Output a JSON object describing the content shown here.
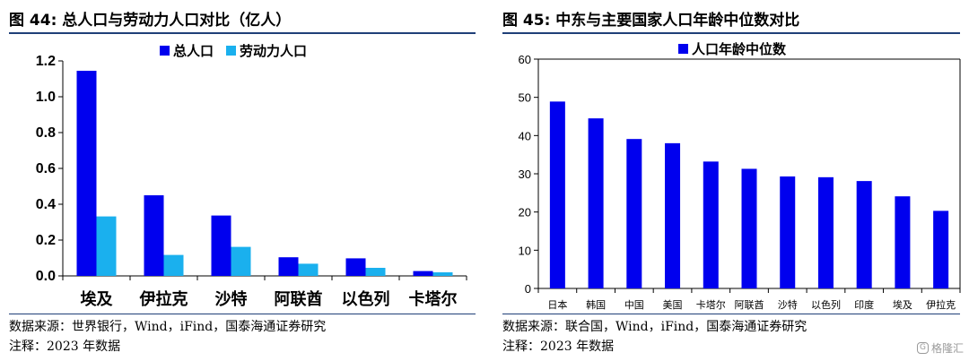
{
  "left": {
    "title": "图 44:  总人口与劳动力人口对比（亿人）",
    "source": "数据来源：世界银行，Wind，iFind，国泰海通证券研究",
    "note": "注释：2023 年数据",
    "colors": {
      "total": "#0000ee",
      "labor": "#1ab0ee"
    }
  },
  "right": {
    "title": "图 45:  中东与主要国家人口年龄中位数对比",
    "source": "数据来源：联合国，Wind，iFind，国泰海通证券研究",
    "note": "注释：2023 年数据",
    "colors": {
      "bar": "#0000ee"
    }
  },
  "watermark": {
    "text": "格隆汇",
    "icon": "logo-icon"
  },
  "chart_data": [
    {
      "type": "bar",
      "categories": [
        "埃及",
        "伊拉克",
        "沙特",
        "阿联酋",
        "以色列",
        "卡塔尔"
      ],
      "series": [
        {
          "name": "总人口",
          "values": [
            1.145,
            0.45,
            0.337,
            0.104,
            0.098,
            0.027
          ]
        },
        {
          "name": "劳动力人口",
          "values": [
            0.332,
            0.117,
            0.162,
            0.068,
            0.045,
            0.02
          ]
        }
      ],
      "ylim": [
        0,
        1.2
      ],
      "yticks": [
        "0.0",
        "0.2",
        "0.4",
        "0.6",
        "0.8",
        "1.0",
        "1.2"
      ],
      "legend": "top"
    },
    {
      "type": "bar",
      "categories": [
        "日本",
        "韩国",
        "中国",
        "美国",
        "卡塔尔",
        "阿联酋",
        "沙特",
        "以色列",
        "印度",
        "埃及",
        "伊拉克"
      ],
      "series": [
        {
          "name": "人口年龄中位数",
          "values": [
            48.9,
            44.5,
            39.1,
            38.0,
            33.2,
            31.3,
            29.3,
            29.1,
            28.1,
            24.1,
            20.3
          ]
        }
      ],
      "ylim": [
        0,
        60
      ],
      "yticks": [
        "0",
        "10",
        "20",
        "30",
        "40",
        "50",
        "60"
      ],
      "legend": "top"
    }
  ]
}
